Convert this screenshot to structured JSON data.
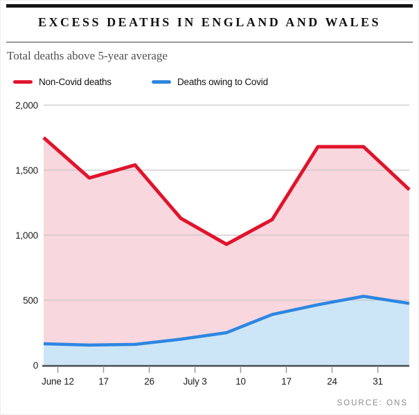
{
  "header": {
    "title": "EXCESS DEATHS IN ENGLAND AND WALES",
    "subtitle": "Total deaths above 5-year average"
  },
  "legend": {
    "items": [
      {
        "label": "Non-Covid deaths",
        "color": "#e0142b"
      },
      {
        "label": "Deaths owing to Covid",
        "color": "#2e86e0"
      }
    ]
  },
  "source": "SOURCE: ONS",
  "chart_data": {
    "type": "area",
    "title": "Excess deaths in England and Wales",
    "subtitle": "Total deaths above 5-year average",
    "x_tick_labels": [
      "June 12",
      "17",
      "26",
      "July 3",
      "10",
      "17",
      "24",
      "31"
    ],
    "series": [
      {
        "name": "Non-Covid deaths",
        "line_color": "#e0142b",
        "fill_color": "#f9d7de",
        "values": [
          1750,
          1440,
          1540,
          1130,
          930,
          1120,
          1680,
          1680,
          1350
        ]
      },
      {
        "name": "Deaths owing to Covid",
        "line_color": "#2e86e0",
        "fill_color": "#cce6f8",
        "values": [
          165,
          155,
          160,
          200,
          250,
          390,
          465,
          530,
          475
        ]
      }
    ],
    "y_ticks": [
      0,
      500,
      1000,
      1500,
      2000
    ],
    "y_tick_labels": [
      "0",
      "500",
      "1,000",
      "1,500",
      "2,000"
    ],
    "ylim": [
      0,
      2000
    ],
    "grid": "horizontal",
    "legend_position": "top-left",
    "axis_colors": {
      "grid": "#c6c6c6",
      "baseline": "#4a4a4a",
      "tick": "#9a9a9a",
      "label": "#1b1b1b"
    }
  }
}
